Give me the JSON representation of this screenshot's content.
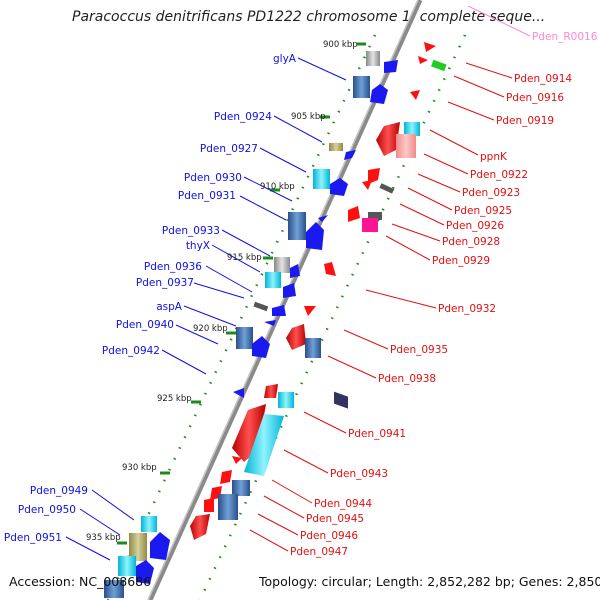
{
  "title": "Paracoccus denitrificans PD1222 chromosome 1, complete seque...",
  "footer": {
    "accession": "Accession: NC_008686",
    "summary": "Topology: circular; Length: 2,852,282 bp; Genes: 2,850"
  },
  "kbp_ticks": [
    "900 kbp",
    "905 kbp",
    "910 kbp",
    "915 kbp",
    "920 kbp",
    "925 kbp",
    "930 kbp",
    "935 kbp"
  ],
  "left_labels": [
    "glyA",
    "Pden_0924",
    "Pden_0927",
    "Pden_0930",
    "Pden_0931",
    "Pden_0933",
    "thyX",
    "Pden_0936",
    "Pden_0937",
    "aspA",
    "Pden_0940",
    "Pden_0942",
    "Pden_0949",
    "Pden_0950",
    "Pden_0951"
  ],
  "right_labels": [
    "Pden_R0016",
    "Pden_0914",
    "Pden_0916",
    "Pden_0919",
    "ppnK",
    "Pden_0922",
    "Pden_0923",
    "Pden_0925",
    "Pden_0926",
    "Pden_0928",
    "Pden_0929",
    "Pden_0932",
    "Pden_0935",
    "Pden_0938",
    "Pden_0941",
    "Pden_0943",
    "Pden_0944",
    "Pden_0945",
    "Pden_0946",
    "Pden_0947"
  ],
  "colors": {
    "backbone": "#8a8a8a",
    "forward_strand": "#ff0000",
    "reverse_strand": "#0000ff",
    "rna": "#ff88cc",
    "tick": "#1e8a1e"
  }
}
